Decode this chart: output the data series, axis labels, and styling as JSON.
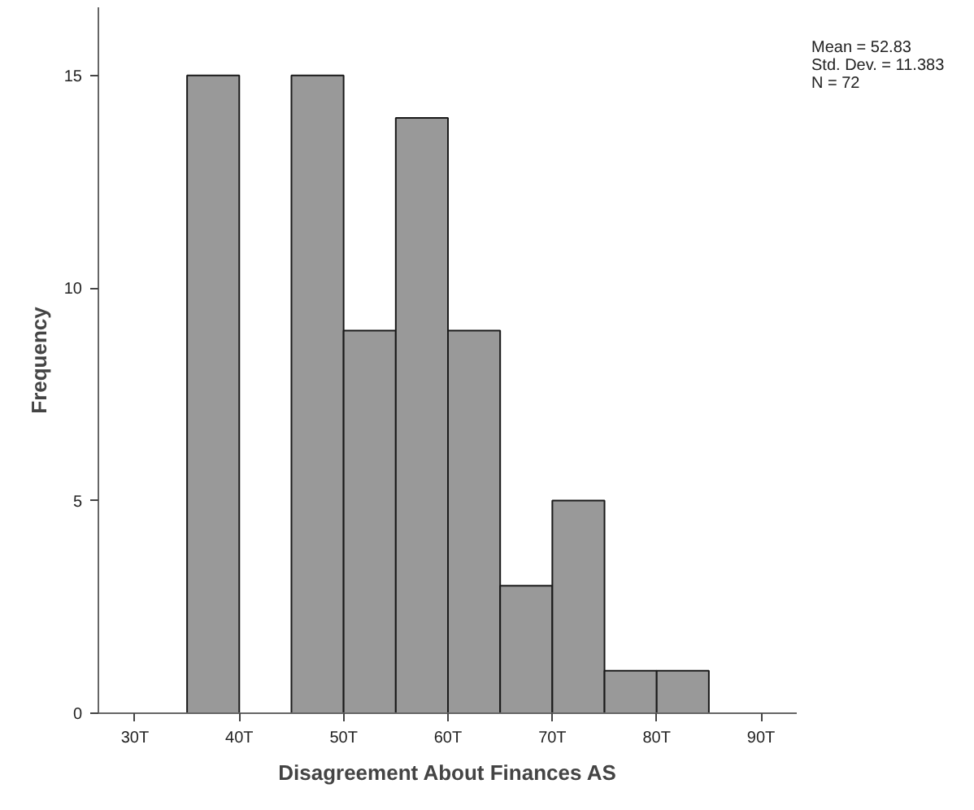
{
  "chart_data": {
    "type": "histogram",
    "xlabel": "Disagreement About Finances AS",
    "ylabel": "Frequency",
    "bins": [
      35,
      40,
      45,
      50,
      55,
      60,
      65,
      70,
      75,
      80,
      85
    ],
    "values": [
      15,
      0,
      15,
      9,
      14,
      9,
      3,
      5,
      1,
      1
    ],
    "color": "#999999",
    "xlim": [
      26.5,
      93.5
    ],
    "ylim": [
      0,
      16.6
    ],
    "xticks": [
      {
        "value": 30,
        "label": "30T"
      },
      {
        "value": 40,
        "label": "40T"
      },
      {
        "value": 50,
        "label": "50T"
      },
      {
        "value": 60,
        "label": "60T"
      },
      {
        "value": 70,
        "label": "70T"
      },
      {
        "value": 80,
        "label": "80T"
      },
      {
        "value": 90,
        "label": "90T"
      }
    ],
    "yticks": [
      0,
      5,
      10,
      15
    ],
    "grid": false,
    "annotations": [
      "Mean = 52.83\nStd. Dev. = 11.383\nN = 72"
    ]
  }
}
